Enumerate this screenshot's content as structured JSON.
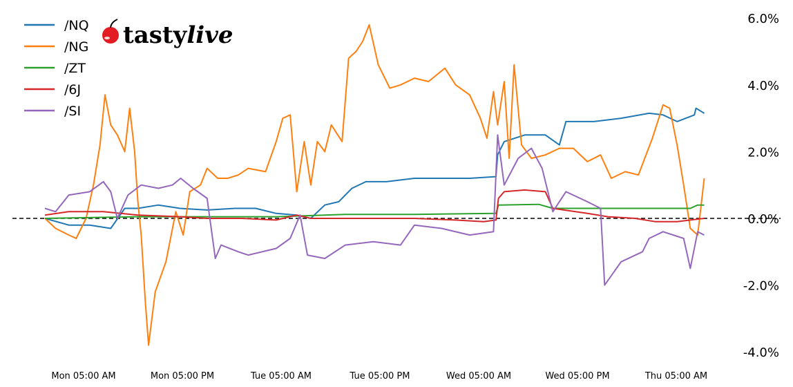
{
  "chart_data": {
    "type": "line",
    "title": "",
    "xlabel": "",
    "ylabel": "",
    "y_unit": "%",
    "ylim": [
      -4.2,
      6.2
    ],
    "y_ticks": [
      "6.0%",
      "4.0%",
      "2.0%",
      "0.0%",
      "-2.0%",
      "-4.0%"
    ],
    "y_tick_values": [
      6,
      4,
      2,
      0,
      -2,
      -4
    ],
    "y_axis_side": "right",
    "x_ticks": [
      "Mon 05:00 AM",
      "Mon 05:00 PM",
      "Tue 05:00 AM",
      "Tue 05:00 PM",
      "Wed 05:00 AM",
      "Wed 05:00 PM",
      "Thu 05:00 AM"
    ],
    "x_tick_times": [
      "Mon 05:00",
      "Mon 17:00",
      "Tue 05:00",
      "Tue 17:00",
      "Wed 05:00",
      "Wed 17:00",
      "Thu 05:00"
    ],
    "xlim": [
      "Mon 00:00",
      "Thu 10:00"
    ],
    "grid": false,
    "reference_line": {
      "value": 0,
      "style": "dashed",
      "color": "#000000"
    },
    "legend_placement": "top-left",
    "series": [
      {
        "name": "/NQ",
        "color": "#1f77b4",
        "points": [
          [
            "Mon 00:18",
            0
          ],
          [
            "Mon 03:12",
            -0.2
          ],
          [
            "Mon 05:45",
            -0.2
          ],
          [
            "Mon 08:18",
            -0.3
          ],
          [
            "Mon 10:00",
            0.3
          ],
          [
            "Mon 11:36",
            0.3
          ],
          [
            "Mon 14:06",
            0.4
          ],
          [
            "Mon 16:42",
            0.3
          ],
          [
            "Mon 20:00",
            0.25
          ],
          [
            "Mon 23:24",
            0.3
          ],
          [
            "Tue 01:54",
            0.3
          ],
          [
            "Tue 04:24",
            0.15
          ],
          [
            "Tue 06:54",
            0.1
          ],
          [
            "Tue 08:36",
            0
          ],
          [
            "Tue 10:18",
            0.4
          ],
          [
            "Tue 12:00",
            0.5
          ],
          [
            "Tue 13:36",
            0.9
          ],
          [
            "Tue 15:18",
            1.1
          ],
          [
            "Tue 17:48",
            1.1
          ],
          [
            "Tue 21:12",
            1.2
          ],
          [
            "Wed 00:30",
            1.2
          ],
          [
            "Wed 03:54",
            1.2
          ],
          [
            "Wed 07:06",
            1.25
          ],
          [
            "Wed 07:18",
            1.9
          ],
          [
            "Wed 08:06",
            2.3
          ],
          [
            "Wed 10:36",
            2.5
          ],
          [
            "Wed 13:06",
            2.5
          ],
          [
            "Wed 14:48",
            2.2
          ],
          [
            "Wed 15:36",
            2.9
          ],
          [
            "Wed 19:00",
            2.9
          ],
          [
            "Wed 22:18",
            3.0
          ],
          [
            "Thu 01:42",
            3.15
          ],
          [
            "Thu 03:24",
            3.1
          ],
          [
            "Thu 05:06",
            2.9
          ],
          [
            "Thu 07:12",
            3.1
          ],
          [
            "Thu 07:24",
            3.3
          ],
          [
            "Thu 08:24",
            3.15
          ]
        ]
      },
      {
        "name": "/NG",
        "color": "#ff7f0e",
        "points": [
          [
            "Mon 00:18",
            0
          ],
          [
            "Mon 01:36",
            -0.3
          ],
          [
            "Mon 03:12",
            -0.5
          ],
          [
            "Mon 04:06",
            -0.6
          ],
          [
            "Mon 05:18",
            0
          ],
          [
            "Mon 06:12",
            1.0
          ],
          [
            "Mon 07:00",
            2.2
          ],
          [
            "Mon 07:36",
            3.7
          ],
          [
            "Mon 08:18",
            2.8
          ],
          [
            "Mon 09:06",
            2.5
          ],
          [
            "Mon 10:00",
            2.0
          ],
          [
            "Mon 10:36",
            3.3
          ],
          [
            "Mon 11:12",
            2.0
          ],
          [
            "Mon 11:36",
            0.5
          ],
          [
            "Mon 12:00",
            -0.5
          ],
          [
            "Mon 12:30",
            -2.5
          ],
          [
            "Mon 12:54",
            -3.8
          ],
          [
            "Mon 13:42",
            -2.2
          ],
          [
            "Mon 15:00",
            -1.3
          ],
          [
            "Mon 16:12",
            0.2
          ],
          [
            "Mon 17:06",
            -0.5
          ],
          [
            "Mon 17:54",
            0.8
          ],
          [
            "Mon 19:12",
            1.0
          ],
          [
            "Mon 20:00",
            1.5
          ],
          [
            "Mon 21:18",
            1.2
          ],
          [
            "Mon 22:30",
            1.2
          ],
          [
            "Mon 23:48",
            1.3
          ],
          [
            "Tue 01:00",
            1.5
          ],
          [
            "Tue 03:06",
            1.4
          ],
          [
            "Tue 04:24",
            2.3
          ],
          [
            "Tue 05:12",
            3.0
          ],
          [
            "Tue 06:06",
            3.1
          ],
          [
            "Tue 06:54",
            0.8
          ],
          [
            "Tue 07:48",
            2.3
          ],
          [
            "Tue 08:36",
            1.0
          ],
          [
            "Tue 09:24",
            2.3
          ],
          [
            "Tue 10:18",
            2.0
          ],
          [
            "Tue 11:06",
            2.8
          ],
          [
            "Tue 12:24",
            2.3
          ],
          [
            "Tue 13:12",
            4.8
          ],
          [
            "Tue 14:06",
            5.0
          ],
          [
            "Tue 14:54",
            5.3
          ],
          [
            "Tue 15:42",
            5.8
          ],
          [
            "Tue 16:48",
            4.6
          ],
          [
            "Tue 18:12",
            3.9
          ],
          [
            "Tue 19:30",
            4.0
          ],
          [
            "Tue 21:12",
            4.2
          ],
          [
            "Tue 22:54",
            4.1
          ],
          [
            "Wed 00:54",
            4.5
          ],
          [
            "Wed 02:12",
            4.0
          ],
          [
            "Wed 03:54",
            3.7
          ],
          [
            "Wed 05:12",
            3.0
          ],
          [
            "Wed 06:00",
            2.4
          ],
          [
            "Wed 06:48",
            3.8
          ],
          [
            "Wed 07:18",
            2.8
          ],
          [
            "Wed 08:06",
            4.1
          ],
          [
            "Wed 08:42",
            1.8
          ],
          [
            "Wed 09:18",
            4.6
          ],
          [
            "Wed 10:12",
            2.2
          ],
          [
            "Wed 11:24",
            1.8
          ],
          [
            "Wed 13:06",
            1.9
          ],
          [
            "Wed 14:48",
            2.1
          ],
          [
            "Wed 16:30",
            2.1
          ],
          [
            "Wed 18:12",
            1.7
          ],
          [
            "Wed 19:48",
            1.9
          ],
          [
            "Wed 21:06",
            1.2
          ],
          [
            "Wed 22:48",
            1.4
          ],
          [
            "Thu 00:24",
            1.3
          ],
          [
            "Thu 02:06",
            2.4
          ],
          [
            "Thu 03:24",
            3.4
          ],
          [
            "Thu 04:12",
            3.3
          ],
          [
            "Thu 05:06",
            2.2
          ],
          [
            "Thu 05:54",
            1.0
          ],
          [
            "Thu 06:42",
            -0.3
          ],
          [
            "Thu 07:36",
            -0.5
          ],
          [
            "Thu 08:24",
            1.2
          ]
        ]
      },
      {
        "name": "/ZT",
        "color": "#2ca02c",
        "points": [
          [
            "Mon 00:18",
            0
          ],
          [
            "Mon 11:36",
            0.05
          ],
          [
            "Tue 04:24",
            0.05
          ],
          [
            "Tue 12:48",
            0.12
          ],
          [
            "Tue 21:12",
            0.12
          ],
          [
            "Wed 07:06",
            0.15
          ],
          [
            "Wed 07:24",
            0.4
          ],
          [
            "Wed 12:18",
            0.42
          ],
          [
            "Wed 14:00",
            0.3
          ],
          [
            "Wed 22:18",
            0.3
          ],
          [
            "Thu 06:42",
            0.3
          ],
          [
            "Thu 07:36",
            0.4
          ],
          [
            "Thu 08:24",
            0.4
          ]
        ]
      },
      {
        "name": "/6J",
        "color": "#d62728",
        "points": [
          [
            "Mon 00:18",
            0.1
          ],
          [
            "Mon 03:12",
            0.2
          ],
          [
            "Mon 07:24",
            0.2
          ],
          [
            "Mon 11:36",
            0.1
          ],
          [
            "Mon 16:42",
            0.05
          ],
          [
            "Mon 20:00",
            0
          ],
          [
            "Tue 00:12",
            0
          ],
          [
            "Tue 04:24",
            -0.05
          ],
          [
            "Tue 06:54",
            0.1
          ],
          [
            "Tue 08:36",
            0
          ],
          [
            "Tue 12:48",
            0
          ],
          [
            "Tue 17:00",
            0
          ],
          [
            "Tue 21:12",
            0
          ],
          [
            "Wed 02:12",
            -0.05
          ],
          [
            "Wed 05:36",
            -0.1
          ],
          [
            "Wed 07:06",
            -0.05
          ],
          [
            "Wed 07:24",
            0.6
          ],
          [
            "Wed 08:06",
            0.8
          ],
          [
            "Wed 10:36",
            0.85
          ],
          [
            "Wed 13:06",
            0.8
          ],
          [
            "Wed 14:00",
            0.3
          ],
          [
            "Wed 18:12",
            0.15
          ],
          [
            "Wed 20:42",
            0.05
          ],
          [
            "Thu 00:00",
            0
          ],
          [
            "Thu 02:30",
            -0.1
          ],
          [
            "Thu 05:06",
            -0.1
          ],
          [
            "Thu 06:42",
            -0.05
          ],
          [
            "Thu 08:24",
            0
          ]
        ]
      },
      {
        "name": "/SI",
        "color": "#9467bd",
        "points": [
          [
            "Mon 00:18",
            0.3
          ],
          [
            "Mon 01:36",
            0.2
          ],
          [
            "Mon 03:12",
            0.7
          ],
          [
            "Mon 05:45",
            0.8
          ],
          [
            "Mon 07:24",
            1.1
          ],
          [
            "Mon 08:18",
            0.8
          ],
          [
            "Mon 09:06",
            0.0
          ],
          [
            "Mon 10:24",
            0.7
          ],
          [
            "Mon 12:00",
            1.0
          ],
          [
            "Mon 14:06",
            0.9
          ],
          [
            "Mon 15:48",
            1.0
          ],
          [
            "Mon 16:48",
            1.2
          ],
          [
            "Mon 18:18",
            0.9
          ],
          [
            "Mon 20:00",
            0.6
          ],
          [
            "Mon 21:00",
            -1.2
          ],
          [
            "Mon 21:42",
            -0.8
          ],
          [
            "Mon 23:48",
            -1.0
          ],
          [
            "Tue 01:00",
            -1.1
          ],
          [
            "Tue 04:24",
            -0.9
          ],
          [
            "Tue 06:06",
            -0.6
          ],
          [
            "Tue 07:18",
            0.1
          ],
          [
            "Tue 08:12",
            -1.1
          ],
          [
            "Tue 10:18",
            -1.2
          ],
          [
            "Tue 12:48",
            -0.8
          ],
          [
            "Tue 16:12",
            -0.7
          ],
          [
            "Tue 19:30",
            -0.8
          ],
          [
            "Tue 21:12",
            -0.2
          ],
          [
            "Wed 00:30",
            -0.3
          ],
          [
            "Wed 03:54",
            -0.5
          ],
          [
            "Wed 06:48",
            -0.4
          ],
          [
            "Wed 07:18",
            2.5
          ],
          [
            "Wed 08:06",
            1.0
          ],
          [
            "Wed 09:48",
            1.8
          ],
          [
            "Wed 11:24",
            2.1
          ],
          [
            "Wed 12:42",
            1.5
          ],
          [
            "Wed 14:00",
            0.2
          ],
          [
            "Wed 15:36",
            0.8
          ],
          [
            "Wed 18:12",
            0.5
          ],
          [
            "Wed 19:48",
            0.3
          ],
          [
            "Wed 20:18",
            -2.0
          ],
          [
            "Wed 22:18",
            -1.3
          ],
          [
            "Thu 00:54",
            -1.0
          ],
          [
            "Thu 01:42",
            -0.6
          ],
          [
            "Thu 03:24",
            -0.4
          ],
          [
            "Thu 05:54",
            -0.6
          ],
          [
            "Thu 06:42",
            -1.5
          ],
          [
            "Thu 07:36",
            -0.4
          ],
          [
            "Thu 08:24",
            -0.5
          ]
        ]
      }
    ]
  },
  "logo": {
    "text_bold": "tasty",
    "text_italic": "live",
    "cherry_color": "#e31b23"
  }
}
